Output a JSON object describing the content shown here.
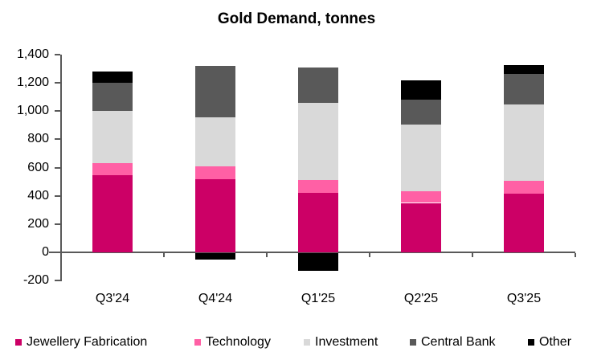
{
  "title": "Gold Demand, tonnes",
  "colors": {
    "axis": "#595959",
    "text": "#000000",
    "background": "#ffffff",
    "jewellery": "#CC0066",
    "technology": "#FF60A5",
    "investment": "#D9D9D9",
    "central_bank": "#595959",
    "other": "#000000"
  },
  "chart_data": {
    "type": "bar",
    "stacked": true,
    "title": "Gold Demand, tonnes",
    "xlabel": "",
    "ylabel": "",
    "categories": [
      "Q3'24",
      "Q4'24",
      "Q1'25",
      "Q2'25",
      "Q3'25"
    ],
    "series": [
      {
        "name": "Jewellery Fabrication",
        "color": "#CC0066",
        "values": [
          545,
          520,
          420,
          350,
          415
        ]
      },
      {
        "name": "Technology",
        "color": "#FF60A5",
        "values": [
          85,
          90,
          90,
          85,
          90
        ]
      },
      {
        "name": "Investment",
        "color": "#D9D9D9",
        "values": [
          370,
          345,
          550,
          470,
          540
        ]
      },
      {
        "name": "Central Bank",
        "color": "#595959",
        "values": [
          200,
          365,
          250,
          175,
          220
        ]
      },
      {
        "name": "Other",
        "color": "#000000",
        "values": [
          80,
          -45,
          -125,
          140,
          60
        ]
      }
    ],
    "stack_totals_positive": [
      1280,
      1320,
      1310,
      1220,
      1325
    ],
    "ylim": [
      -200,
      1400
    ],
    "ytick_step": 200,
    "yticks": [
      {
        "value": 1400,
        "label": "1,400"
      },
      {
        "value": 1200,
        "label": "1,200"
      },
      {
        "value": 1000,
        "label": "1,000"
      },
      {
        "value": 800,
        "label": "800"
      },
      {
        "value": 600,
        "label": "600"
      },
      {
        "value": 400,
        "label": "400"
      },
      {
        "value": 200,
        "label": "200"
      },
      {
        "value": 0,
        "label": "0"
      },
      {
        "value": -200,
        "label": "-200"
      }
    ],
    "grid": false,
    "legend_position": "bottom"
  }
}
